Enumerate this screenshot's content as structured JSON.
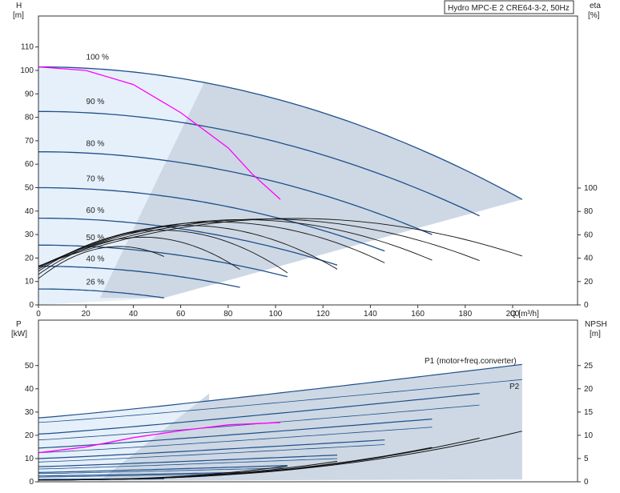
{
  "chart_data": [
    {
      "type": "line",
      "panel": "head-efficiency",
      "title": "Hydro MPC-E 2 CRE64-3-2, 50Hz",
      "y_label": "H",
      "y_unit": "[m]",
      "y2_label": "eta",
      "y2_unit": "[%]",
      "x_label": "Q [m³/h]",
      "xlim": [
        0,
        210
      ],
      "ylim": [
        0,
        120
      ],
      "y2lim": [
        0,
        162
      ],
      "x_ticks": [
        0,
        20,
        40,
        60,
        80,
        100,
        120,
        140,
        160,
        180,
        200
      ],
      "y_ticks": [
        0,
        10,
        20,
        30,
        40,
        50,
        60,
        70,
        80,
        90,
        100,
        110
      ],
      "y2_ticks": [
        0,
        20,
        40,
        60,
        80,
        100
      ],
      "speed_labels": [
        {
          "text": "100 %",
          "q": 12,
          "h": 104
        },
        {
          "text": "90 %",
          "q": 12,
          "h": 85
        },
        {
          "text": "80 %",
          "q": 12,
          "h": 67
        },
        {
          "text": "70 %",
          "q": 12,
          "h": 52
        },
        {
          "text": "60 %",
          "q": 12,
          "h": 38.5
        },
        {
          "text": "50 %",
          "q": 12,
          "h": 27
        },
        {
          "text": "40 %",
          "q": 12,
          "h": 18
        },
        {
          "text": "26 %",
          "q": 12,
          "h": 8
        }
      ],
      "head_curves": [
        {
          "speed": 100,
          "h0": 101.5,
          "qmax": 204,
          "hend": 45
        },
        {
          "speed": 90,
          "h0": 82.5,
          "qmax": 186,
          "hend": 38
        },
        {
          "speed": 80,
          "h0": 65.3,
          "qmax": 166,
          "hend": 30
        },
        {
          "speed": 70,
          "h0": 50,
          "qmax": 146,
          "hend": 23
        },
        {
          "speed": 60,
          "h0": 37,
          "qmax": 126,
          "hend": 17
        },
        {
          "speed": 50,
          "h0": 25.5,
          "qmax": 105,
          "hend": 12
        },
        {
          "speed": 40,
          "h0": 16.5,
          "qmax": 85,
          "hend": 7.5
        },
        {
          "speed": 26,
          "h0": 6.8,
          "qmax": 53,
          "hend": 3
        }
      ],
      "system_curve": {
        "color": "#ff00ff",
        "q": [
          0,
          20,
          40,
          60,
          80,
          90,
          102
        ],
        "h": [
          101.5,
          100,
          94,
          82,
          67,
          56,
          45
        ]
      },
      "efficiency_curves": [
        {
          "speed": 100,
          "peak_q": 108,
          "peak_eta": 74,
          "qmax": 204,
          "eta_end": 58
        },
        {
          "speed": 90,
          "peak_q": 96,
          "peak_eta": 73.5,
          "qmax": 186,
          "eta_end": 56
        },
        {
          "speed": 80,
          "peak_q": 86,
          "peak_eta": 73,
          "qmax": 166,
          "eta_end": 56
        },
        {
          "speed": 70,
          "peak_q": 75,
          "peak_eta": 71,
          "qmax": 146,
          "eta_end": 54
        },
        {
          "speed": 60,
          "peak_q": 63,
          "peak_eta": 68,
          "qmax": 126,
          "eta_end": 50
        },
        {
          "speed": 50,
          "peak_q": 52,
          "peak_eta": 64,
          "qmax": 105,
          "eta_end": 48
        },
        {
          "speed": 40,
          "peak_q": 44,
          "peak_eta": 58,
          "qmax": 85,
          "eta_end": 44
        },
        {
          "speed": 26,
          "peak_q": 34,
          "peak_eta": 50,
          "qmax": 53,
          "eta_end": 38
        }
      ],
      "area_fill_color": "#cdd8e4",
      "light_fill_color": "#e6f0fa",
      "curve_color": "#1f4f8b"
    },
    {
      "type": "line",
      "panel": "power-npsh",
      "y_label": "P",
      "y_unit": "[kW]",
      "y2_label": "NPSH",
      "y2_unit": "[m]",
      "xlim": [
        0,
        210
      ],
      "ylim": [
        0,
        55
      ],
      "y2lim": [
        0,
        27.5
      ],
      "y_ticks": [
        0,
        10,
        20,
        30,
        40,
        50
      ],
      "y2_ticks": [
        0,
        5,
        10,
        15,
        20,
        25
      ],
      "series_labels": [
        "P1 (motor+freq.converter)",
        "P2"
      ],
      "p1_curves": [
        {
          "speed": 100,
          "p0": 27.5,
          "qmax": 204,
          "pend": 50.5
        },
        {
          "speed": 90,
          "p0": 20.5,
          "qmax": 186,
          "pend": 38
        },
        {
          "speed": 80,
          "p0": 14.5,
          "qmax": 166,
          "pend": 27
        },
        {
          "speed": 70,
          "p0": 10,
          "qmax": 146,
          "pend": 18
        },
        {
          "speed": 60,
          "p0": 6.5,
          "qmax": 126,
          "pend": 11.5
        },
        {
          "speed": 50,
          "p0": 4,
          "qmax": 105,
          "pend": 7
        },
        {
          "speed": 40,
          "p0": 2.5,
          "qmax": 85,
          "pend": 4
        },
        {
          "speed": 26,
          "p0": 1,
          "qmax": 53,
          "pend": 1.5
        }
      ],
      "p2_curves": [
        {
          "speed": 100,
          "p0": 25.5,
          "qmax": 204,
          "pend": 44
        },
        {
          "speed": 90,
          "p0": 18,
          "qmax": 186,
          "pend": 33
        },
        {
          "speed": 80,
          "p0": 12.5,
          "qmax": 166,
          "pend": 23.5
        },
        {
          "speed": 70,
          "p0": 8.5,
          "qmax": 146,
          "pend": 16
        },
        {
          "speed": 60,
          "p0": 5.5,
          "qmax": 126,
          "pend": 10
        },
        {
          "speed": 50,
          "p0": 3.5,
          "qmax": 105,
          "pend": 6
        },
        {
          "speed": 40,
          "p0": 2,
          "qmax": 85,
          "pend": 3.5
        },
        {
          "speed": 26,
          "p0": 0.8,
          "qmax": 53,
          "pend": 1.2
        }
      ],
      "system_power": {
        "color": "#ff00ff",
        "q": [
          0,
          20,
          40,
          60,
          80,
          102
        ],
        "p": [
          12.5,
          15,
          19,
          22,
          24.5,
          25.5
        ]
      },
      "npsh_curves": [
        {
          "qmax": 204,
          "nend": 10.5
        },
        {
          "qmax": 186,
          "nend": 9
        },
        {
          "qmax": 166,
          "nend": 7
        },
        {
          "qmax": 146,
          "nend": 5
        },
        {
          "qmax": 126,
          "nend": 4
        },
        {
          "qmax": 105,
          "nend": 3
        }
      ]
    }
  ]
}
